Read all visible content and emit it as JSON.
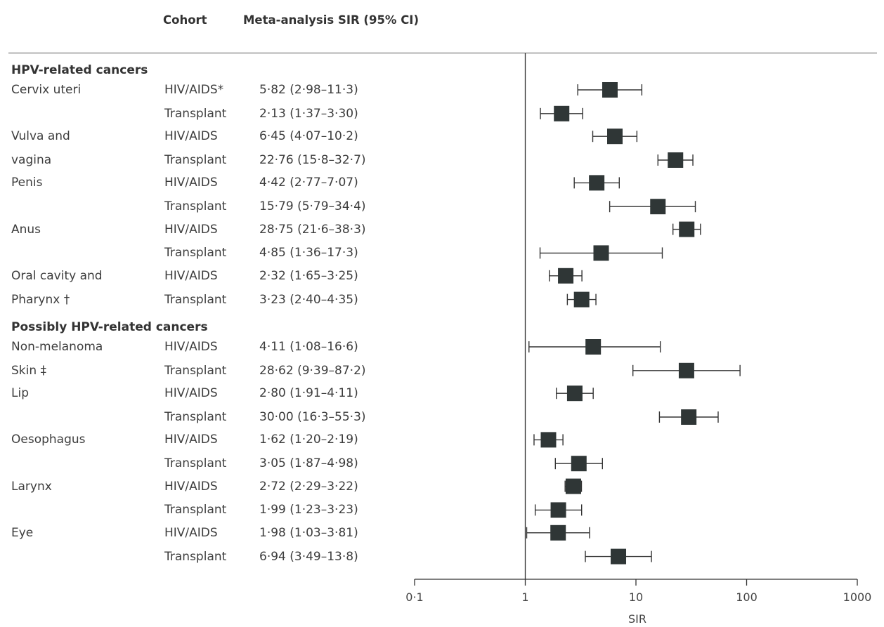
{
  "header": {
    "cohort_label": "Cohort",
    "estimate_label": "Meta-analysis SIR (95% CI)"
  },
  "chart_data": {
    "type": "forest",
    "xlabel": "SIR",
    "x_scale": "log",
    "xlim": [
      0.1,
      1000
    ],
    "x_ticks": [
      0.1,
      1,
      10,
      100,
      1000
    ],
    "x_tick_labels": [
      "0·1",
      "1",
      "10",
      "100",
      "1000"
    ],
    "reference_line": 1,
    "sections": [
      {
        "title": "HPV-related cancers",
        "groups": [
          {
            "label_lines": [
              "Cervix uteri"
            ],
            "rows": [
              {
                "cohort": "HIV/AIDS*",
                "text": "5·82  (2·98–11·3)",
                "sir": 5.82,
                "lo": 2.98,
                "hi": 11.3
              },
              {
                "cohort": "Transplant",
                "text": "2·13  (1·37–3·30)",
                "sir": 2.13,
                "lo": 1.37,
                "hi": 3.3
              }
            ]
          },
          {
            "label_lines": [
              "Vulva and",
              "vagina"
            ],
            "rows": [
              {
                "cohort": "HIV/AIDS",
                "text": "6·45  (4·07–10·2)",
                "sir": 6.45,
                "lo": 4.07,
                "hi": 10.2
              },
              {
                "cohort": "Transplant",
                "text": "22·76  (15·8–32·7)",
                "sir": 22.76,
                "lo": 15.8,
                "hi": 32.7
              }
            ]
          },
          {
            "label_lines": [
              "Penis"
            ],
            "rows": [
              {
                "cohort": "HIV/AIDS",
                "text": "4·42  (2·77–7·07)",
                "sir": 4.42,
                "lo": 2.77,
                "hi": 7.07
              },
              {
                "cohort": "Transplant",
                "text": "15·79  (5·79–34·4)",
                "sir": 15.79,
                "lo": 5.79,
                "hi": 34.4
              }
            ]
          },
          {
            "label_lines": [
              "Anus"
            ],
            "rows": [
              {
                "cohort": "HIV/AIDS",
                "text": "28·75  (21·6–38·3)",
                "sir": 28.75,
                "lo": 21.6,
                "hi": 38.3
              },
              {
                "cohort": "Transplant",
                "text": "4·85  (1·36–17·3)",
                "sir": 4.85,
                "lo": 1.36,
                "hi": 17.3
              }
            ]
          },
          {
            "label_lines": [
              "Oral cavity and",
              "Pharynx †"
            ],
            "rows": [
              {
                "cohort": "HIV/AIDS",
                "text": "2·32  (1·65–3·25)",
                "sir": 2.32,
                "lo": 1.65,
                "hi": 3.25
              },
              {
                "cohort": "Transplant",
                "text": "3·23  (2·40–4·35)",
                "sir": 3.23,
                "lo": 2.4,
                "hi": 4.35
              }
            ]
          }
        ]
      },
      {
        "title": "Possibly HPV-related cancers",
        "groups": [
          {
            "label_lines": [
              "Non-melanoma",
              "Skin ‡"
            ],
            "rows": [
              {
                "cohort": "HIV/AIDS",
                "text": "4·11  (1·08–16·6)",
                "sir": 4.11,
                "lo": 1.08,
                "hi": 16.6
              },
              {
                "cohort": "Transplant",
                "text": "28·62  (9·39–87·2)",
                "sir": 28.62,
                "lo": 9.39,
                "hi": 87.2
              }
            ]
          },
          {
            "label_lines": [
              "Lip"
            ],
            "rows": [
              {
                "cohort": "HIV/AIDS",
                "text": "2·80  (1·91–4·11)",
                "sir": 2.8,
                "lo": 1.91,
                "hi": 4.11
              },
              {
                "cohort": "Transplant",
                "text": "30·00  (16·3–55·3)",
                "sir": 30.0,
                "lo": 16.3,
                "hi": 55.3
              }
            ]
          },
          {
            "label_lines": [
              "Oesophagus"
            ],
            "rows": [
              {
                "cohort": "HIV/AIDS",
                "text": "1·62  (1·20–2·19)",
                "sir": 1.62,
                "lo": 1.2,
                "hi": 2.19
              },
              {
                "cohort": "Transplant",
                "text": "3·05  (1·87–4·98)",
                "sir": 3.05,
                "lo": 1.87,
                "hi": 4.98
              }
            ]
          },
          {
            "label_lines": [
              "Larynx"
            ],
            "rows": [
              {
                "cohort": "HIV/AIDS",
                "text": "2·72  (2·29–3·22)",
                "sir": 2.72,
                "lo": 2.29,
                "hi": 3.22
              },
              {
                "cohort": "Transplant",
                "text": "1·99  (1·23–3·23)",
                "sir": 1.99,
                "lo": 1.23,
                "hi": 3.23
              }
            ]
          },
          {
            "label_lines": [
              "Eye"
            ],
            "rows": [
              {
                "cohort": "HIV/AIDS",
                "text": "1·98  (1·03–3·81)",
                "sir": 1.98,
                "lo": 1.03,
                "hi": 3.81
              },
              {
                "cohort": "Transplant",
                "text": "6·94  (3·49–13·8)",
                "sir": 6.94,
                "lo": 3.49,
                "hi": 13.8
              }
            ]
          }
        ]
      }
    ]
  }
}
